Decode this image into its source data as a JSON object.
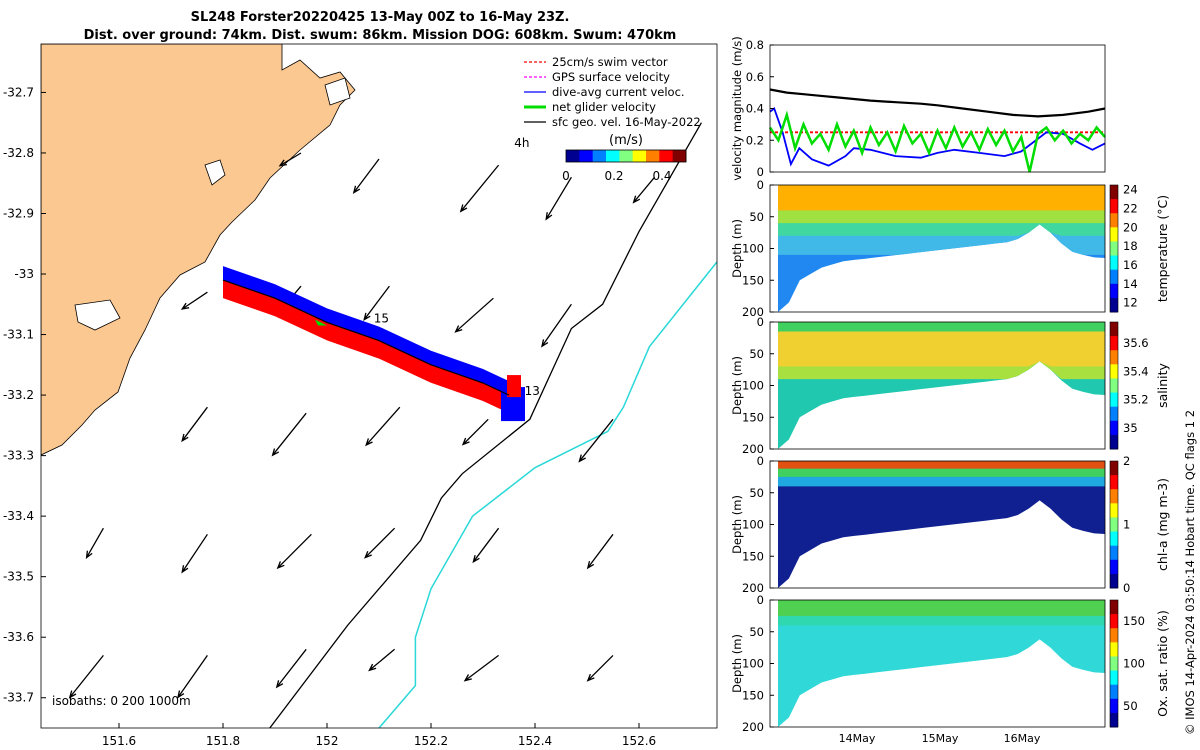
{
  "header": {
    "title_line1": "SL248 Forster20220425 13-May 00Z to 16-May 23Z.",
    "title_line2": "Dist. over ground: 74km. Dist. swum: 86km. Mission DOG: 608km. Swum: 470km"
  },
  "footer_stamp": "© IMOS 14-Apr-2024 03:50:14 Hobart time. QC flags 1  2",
  "colors": {
    "land": "#fcc892",
    "current_arrow": "#000000",
    "track_red": "#ff0000",
    "track_blue": "#0000ff",
    "net_velocity": "#00dd00",
    "isobath_200": "#000000",
    "isobath_1000": "#2ad8d8",
    "gps_magenta": "#ff00ff"
  },
  "chart_data": [
    {
      "type": "map",
      "xlim": [
        151.45,
        152.75
      ],
      "ylim": [
        -33.75,
        -32.62
      ],
      "x_ticks": [
        "151.6",
        "151.8",
        "152",
        "152.2",
        "152.4",
        "152.6"
      ],
      "y_ticks": [
        "-32.7",
        "-32.8",
        "-32.9",
        "-33",
        "-33.1",
        "-33.2",
        "-33.3",
        "-33.4",
        "-33.5",
        "-33.6",
        "-33.7"
      ],
      "legend": {
        "placement": "top-right",
        "entries": [
          {
            "label": "25cm/s swim vector",
            "color": "#ff0000"
          },
          {
            "label": "GPS surface velocity",
            "color": "#ff00ff"
          },
          {
            "label": "dive-avg current veloc.",
            "color": "#0000ff"
          },
          {
            "label": "net glider velocity",
            "color": "#00dd00"
          },
          {
            "label": "sfc geo. vel. 16-May-2022",
            "color": "#000000"
          }
        ]
      },
      "colorbar": {
        "label": "(m/s)",
        "ticks": [
          "0",
          "0.2",
          "0.4"
        ],
        "range": [
          0,
          0.5
        ]
      },
      "annotations": [
        {
          "text": "4h",
          "x": 152.36,
          "y": -32.79
        },
        {
          "text": "15",
          "x": 152.09,
          "y": -33.08
        },
        {
          "text": "13",
          "x": 152.38,
          "y": -33.2
        }
      ],
      "isobath_note": "isobaths: 0   200  1000m",
      "track": [
        {
          "lon": 151.8,
          "lat": -33.01
        },
        {
          "lon": 151.9,
          "lat": -33.04
        },
        {
          "lon": 152.0,
          "lat": -33.08
        },
        {
          "lon": 152.1,
          "lat": -33.11
        },
        {
          "lon": 152.2,
          "lat": -33.15
        },
        {
          "lon": 152.3,
          "lat": -33.18
        },
        {
          "lon": 152.35,
          "lat": -33.2
        }
      ],
      "isobath_200m": [
        {
          "lon": 151.89,
          "lat": -33.75
        },
        {
          "lon": 152.04,
          "lat": -33.58
        },
        {
          "lon": 152.18,
          "lat": -33.44
        },
        {
          "lon": 152.22,
          "lat": -33.37
        },
        {
          "lon": 152.26,
          "lat": -33.33
        },
        {
          "lon": 152.39,
          "lat": -33.24
        },
        {
          "lon": 152.47,
          "lat": -33.09
        },
        {
          "lon": 152.53,
          "lat": -33.05
        },
        {
          "lon": 152.6,
          "lat": -32.93
        },
        {
          "lon": 152.72,
          "lat": -32.75
        }
      ],
      "isobath_1000m": [
        {
          "lon": 152.1,
          "lat": -33.75
        },
        {
          "lon": 152.17,
          "lat": -33.68
        },
        {
          "lon": 152.17,
          "lat": -33.6
        },
        {
          "lon": 152.2,
          "lat": -33.52
        },
        {
          "lon": 152.28,
          "lat": -33.4
        },
        {
          "lon": 152.4,
          "lat": -33.32
        },
        {
          "lon": 152.54,
          "lat": -33.26
        },
        {
          "lon": 152.57,
          "lat": -33.22
        },
        {
          "lon": 152.62,
          "lat": -33.12
        },
        {
          "lon": 152.75,
          "lat": -32.98
        }
      ],
      "geo_vectors_uv_ms": [
        {
          "lon": 151.95,
          "lat": -32.8,
          "u": -0.05,
          "v": -0.03
        },
        {
          "lon": 152.1,
          "lat": -32.81,
          "u": -0.06,
          "v": -0.08
        },
        {
          "lon": 152.33,
          "lat": -32.82,
          "u": -0.09,
          "v": -0.11
        },
        {
          "lon": 152.47,
          "lat": -32.84,
          "u": -0.06,
          "v": -0.1
        },
        {
          "lon": 152.63,
          "lat": -32.84,
          "u": -0.05,
          "v": -0.06
        },
        {
          "lon": 151.77,
          "lat": -33.03,
          "u": -0.06,
          "v": -0.04
        },
        {
          "lon": 151.95,
          "lat": -33.02,
          "u": -0.05,
          "v": -0.06
        },
        {
          "lon": 152.12,
          "lat": -33.02,
          "u": -0.06,
          "v": -0.08
        },
        {
          "lon": 152.32,
          "lat": -33.04,
          "u": -0.09,
          "v": -0.08
        },
        {
          "lon": 152.47,
          "lat": -33.05,
          "u": -0.07,
          "v": -0.1
        },
        {
          "lon": 151.77,
          "lat": -33.22,
          "u": -0.06,
          "v": -0.08
        },
        {
          "lon": 151.96,
          "lat": -33.23,
          "u": -0.08,
          "v": -0.1
        },
        {
          "lon": 152.14,
          "lat": -33.22,
          "u": -0.08,
          "v": -0.09
        },
        {
          "lon": 152.31,
          "lat": -33.24,
          "u": -0.06,
          "v": -0.06
        },
        {
          "lon": 152.55,
          "lat": -33.24,
          "u": -0.08,
          "v": -0.1
        },
        {
          "lon": 151.57,
          "lat": -33.42,
          "u": -0.04,
          "v": -0.07
        },
        {
          "lon": 151.77,
          "lat": -33.43,
          "u": -0.06,
          "v": -0.09
        },
        {
          "lon": 151.97,
          "lat": -33.43,
          "u": -0.08,
          "v": -0.08
        },
        {
          "lon": 152.13,
          "lat": -33.42,
          "u": -0.07,
          "v": -0.07
        },
        {
          "lon": 152.33,
          "lat": -33.42,
          "u": -0.06,
          "v": -0.08
        },
        {
          "lon": 152.55,
          "lat": -33.43,
          "u": -0.06,
          "v": -0.08
        },
        {
          "lon": 151.57,
          "lat": -33.63,
          "u": -0.08,
          "v": -0.1
        },
        {
          "lon": 151.77,
          "lat": -33.63,
          "u": -0.07,
          "v": -0.1
        },
        {
          "lon": 151.96,
          "lat": -33.62,
          "u": -0.07,
          "v": -0.09
        },
        {
          "lon": 152.13,
          "lat": -33.62,
          "u": -0.06,
          "v": -0.05
        },
        {
          "lon": 152.33,
          "lat": -33.63,
          "u": -0.08,
          "v": -0.06
        },
        {
          "lon": 152.55,
          "lat": -33.63,
          "u": -0.06,
          "v": -0.06
        }
      ]
    },
    {
      "type": "line",
      "ylabel": "velocity magnitude (m/s)",
      "ylim": [
        0,
        0.8
      ],
      "y_ticks": [
        "0",
        "0.2",
        "0.4",
        "0.6",
        "0.8"
      ],
      "series": [
        {
          "color": "#000000",
          "x": [
            0,
            0.2,
            0.4,
            0.6,
            0.8,
            1.0,
            1.2,
            1.5,
            1.8,
            2.0,
            2.3,
            2.6,
            2.9,
            3.2,
            3.5,
            3.8,
            4.0
          ],
          "y": [
            0.52,
            0.5,
            0.49,
            0.48,
            0.47,
            0.46,
            0.45,
            0.44,
            0.43,
            0.42,
            0.4,
            0.38,
            0.36,
            0.35,
            0.36,
            0.38,
            0.4
          ]
        },
        {
          "color": "#ff0000",
          "x": [
            0,
            4.0
          ],
          "y": [
            0.25,
            0.25
          ]
        },
        {
          "color": "#0000ff",
          "x": [
            0,
            0.05,
            0.15,
            0.25,
            0.35,
            0.5,
            0.7,
            0.9,
            1.0,
            1.2,
            1.5,
            1.8,
            2.0,
            2.2,
            2.5,
            2.8,
            3.0,
            3.3,
            3.5,
            3.7,
            3.85,
            4.0
          ],
          "y": [
            0.38,
            0.4,
            0.25,
            0.05,
            0.15,
            0.08,
            0.04,
            0.1,
            0.15,
            0.14,
            0.1,
            0.09,
            0.12,
            0.14,
            0.12,
            0.1,
            0.13,
            0.25,
            0.24,
            0.18,
            0.14,
            0.18
          ]
        },
        {
          "color": "#00dd00",
          "x": [
            0,
            0.1,
            0.2,
            0.3,
            0.4,
            0.5,
            0.6,
            0.7,
            0.8,
            0.9,
            1.0,
            1.1,
            1.2,
            1.3,
            1.4,
            1.5,
            1.6,
            1.7,
            1.8,
            1.9,
            2.0,
            2.1,
            2.2,
            2.3,
            2.4,
            2.5,
            2.6,
            2.7,
            2.8,
            2.9,
            3.0,
            3.1,
            3.2,
            3.3,
            3.4,
            3.5,
            3.6,
            3.7,
            3.8,
            3.9,
            4.0
          ],
          "y": [
            0.28,
            0.2,
            0.36,
            0.15,
            0.3,
            0.18,
            0.24,
            0.14,
            0.3,
            0.16,
            0.26,
            0.12,
            0.28,
            0.17,
            0.25,
            0.13,
            0.29,
            0.18,
            0.24,
            0.12,
            0.26,
            0.15,
            0.28,
            0.16,
            0.25,
            0.14,
            0.27,
            0.17,
            0.26,
            0.13,
            0.22,
            0.0,
            0.24,
            0.28,
            0.2,
            0.26,
            0.18,
            0.24,
            0.2,
            0.28,
            0.22
          ]
        }
      ]
    },
    {
      "type": "heatmap",
      "ylabel": "Depth (m)",
      "ylim": [
        0,
        200
      ],
      "y_ticks": [
        "0",
        "50",
        "100",
        "150",
        "200"
      ],
      "colorbar": {
        "label": "temperature (°C)",
        "ticks": [
          "12",
          "14",
          "16",
          "18",
          "20",
          "22",
          "24"
        ],
        "range": [
          11,
          24.5
        ]
      },
      "section_profile": {
        "bottom_depth_m": [
          200,
          185,
          150,
          140,
          130,
          125,
          120,
          118,
          116,
          114,
          112,
          110,
          108,
          106,
          104,
          102,
          100,
          98,
          96,
          94,
          92,
          90,
          85,
          75,
          62,
          75,
          92,
          105,
          110,
          114,
          115
        ],
        "layers": [
          {
            "depth_max": 40,
            "color": "#ffb000"
          },
          {
            "depth_max": 60,
            "color": "#a0e040"
          },
          {
            "depth_max": 80,
            "color": "#40d8a0"
          },
          {
            "depth_max": 110,
            "color": "#40b8e8"
          },
          {
            "depth_max": 200,
            "color": "#2088f0"
          }
        ]
      }
    },
    {
      "type": "heatmap",
      "ylabel": "Depth (m)",
      "ylim": [
        0,
        200
      ],
      "y_ticks": [
        "0",
        "50",
        "100",
        "150",
        "200"
      ],
      "colorbar": {
        "label": "salinity",
        "ticks": [
          "35",
          "35.2",
          "35.4",
          "35.6"
        ],
        "range": [
          34.85,
          35.75
        ]
      },
      "section_profile": {
        "bottom_depth_m": [
          200,
          185,
          150,
          140,
          130,
          125,
          120,
          118,
          116,
          114,
          112,
          110,
          108,
          106,
          104,
          102,
          100,
          98,
          96,
          94,
          92,
          90,
          85,
          75,
          62,
          75,
          92,
          105,
          110,
          114,
          115
        ],
        "layers": [
          {
            "depth_max": 15,
            "color": "#40d060"
          },
          {
            "depth_max": 70,
            "color": "#f0d030"
          },
          {
            "depth_max": 90,
            "color": "#a8e040"
          },
          {
            "depth_max": 200,
            "color": "#20c8b0"
          }
        ]
      }
    },
    {
      "type": "heatmap",
      "ylabel": "Depth (m)",
      "ylim": [
        0,
        200
      ],
      "y_ticks": [
        "0",
        "50",
        "100",
        "150",
        "200"
      ],
      "colorbar": {
        "label": "chl-a (mg m-3)",
        "ticks": [
          "0",
          "1",
          "2"
        ],
        "range": [
          0,
          2
        ]
      },
      "section_profile": {
        "bottom_depth_m": [
          200,
          185,
          150,
          140,
          130,
          125,
          120,
          118,
          116,
          114,
          112,
          110,
          108,
          106,
          104,
          102,
          100,
          98,
          96,
          94,
          92,
          90,
          85,
          75,
          62,
          75,
          92,
          105,
          110,
          114,
          115
        ],
        "layers": [
          {
            "depth_max": 12,
            "color": "#e05010"
          },
          {
            "depth_max": 25,
            "color": "#40d060"
          },
          {
            "depth_max": 40,
            "color": "#20a8e0"
          },
          {
            "depth_max": 200,
            "color": "#102090"
          }
        ]
      }
    },
    {
      "type": "heatmap",
      "ylabel": "Depth (m)",
      "ylim": [
        0,
        200
      ],
      "y_ticks": [
        "0",
        "50",
        "100",
        "150",
        "200"
      ],
      "x_ticks": [
        "14May",
        "15May",
        "16May"
      ],
      "colorbar": {
        "label": "Ox. sat. ratio (%)",
        "ticks": [
          "50",
          "100",
          "150"
        ],
        "range": [
          25,
          175
        ]
      },
      "section_profile": {
        "bottom_depth_m": [
          200,
          185,
          150,
          140,
          130,
          125,
          120,
          118,
          116,
          114,
          112,
          110,
          108,
          106,
          104,
          102,
          100,
          98,
          96,
          94,
          92,
          90,
          85,
          75,
          62,
          75,
          92,
          105,
          110,
          114,
          115
        ],
        "layers": [
          {
            "depth_max": 25,
            "color": "#50d050"
          },
          {
            "depth_max": 40,
            "color": "#30d8b0"
          },
          {
            "depth_max": 200,
            "color": "#30d8d8"
          }
        ]
      }
    }
  ]
}
